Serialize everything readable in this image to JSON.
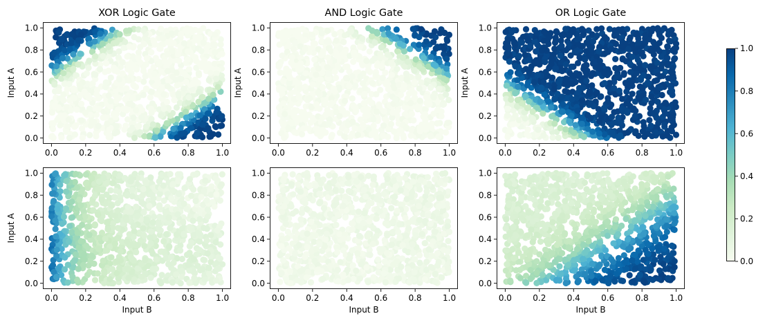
{
  "chart_data": {
    "type": "scatter",
    "colormap": "GnBu",
    "colormap_stops": [
      "#f7fcf0",
      "#e0f3db",
      "#ccebc5",
      "#a8ddb5",
      "#7bccc4",
      "#4eb3d3",
      "#2b8cbe",
      "#0868ac",
      "#084081"
    ],
    "grid": false,
    "xlabel": "Input B",
    "ylabel": "Input A",
    "xlim": [
      0,
      1
    ],
    "ylim": [
      0,
      1
    ],
    "xticks": [
      0.0,
      0.2,
      0.4,
      0.6,
      0.8,
      1.0
    ],
    "yticks": [
      0.0,
      0.2,
      0.4,
      0.6,
      0.8,
      1.0
    ],
    "tick_labels": [
      "0.0",
      "0.2",
      "0.4",
      "0.6",
      "0.8",
      "1.0"
    ],
    "colorbar": {
      "range": [
        0.0,
        1.0
      ],
      "ticks": [
        0.0,
        0.2,
        0.4,
        0.6,
        0.8,
        1.0
      ],
      "tick_labels": [
        "0.0",
        "0.2",
        "0.4",
        "0.6",
        "0.8",
        "1.0"
      ]
    },
    "panels": [
      {
        "row": 0,
        "col": 0,
        "title": "XOR Logic Gate",
        "model": "xor_sharp",
        "show_xlabel": false,
        "show_ylabel": true
      },
      {
        "row": 0,
        "col": 1,
        "title": "AND Logic Gate",
        "model": "and_sharp",
        "show_xlabel": false,
        "show_ylabel": true
      },
      {
        "row": 0,
        "col": 2,
        "title": "OR Logic Gate",
        "model": "or_sharp",
        "show_xlabel": false,
        "show_ylabel": true
      },
      {
        "row": 1,
        "col": 0,
        "title": "",
        "model": "left_edge_high",
        "show_xlabel": true,
        "show_ylabel": true
      },
      {
        "row": 1,
        "col": 1,
        "title": "",
        "model": "near_zero",
        "show_xlabel": true,
        "show_ylabel": false
      },
      {
        "row": 1,
        "col": 2,
        "title": "",
        "model": "bottom_right_high",
        "show_xlabel": true,
        "show_ylabel": false
      }
    ]
  }
}
